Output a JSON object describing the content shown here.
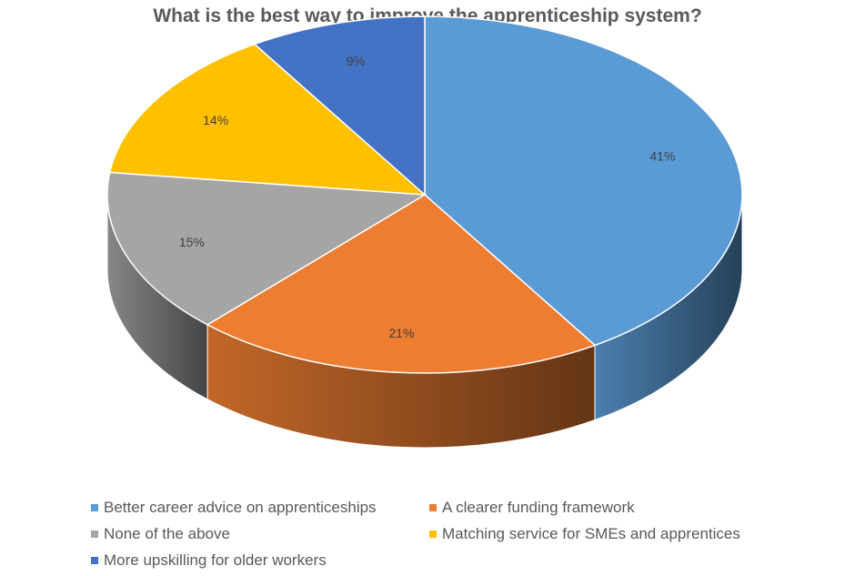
{
  "chart_data": {
    "type": "pie",
    "title": "What is the best way to improve the apprenticeship system?",
    "style": "3d-pie",
    "legend_position": "bottom",
    "slices": [
      {
        "name": "Better career advice on apprenticeships",
        "value": 41,
        "label": "41%",
        "color": "#5B9BD5"
      },
      {
        "name": "A clearer funding framework",
        "value": 21,
        "label": "21%",
        "color": "#ED7D31"
      },
      {
        "name": "None of the above",
        "value": 15,
        "label": "15%",
        "color": "#A5A5A5"
      },
      {
        "name": "Matching service for SMEs and apprentices",
        "value": 14,
        "label": "14%",
        "color": "#FFC000"
      },
      {
        "name": "More upskilling for older workers",
        "value": 9,
        "label": "9%",
        "color": "#4472C4"
      }
    ]
  }
}
